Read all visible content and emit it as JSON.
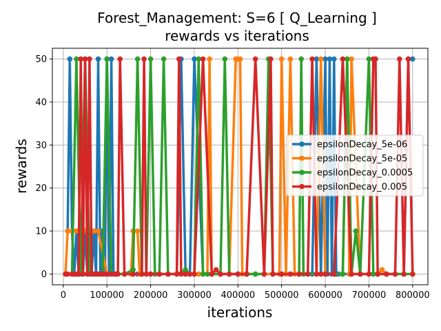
{
  "chart_data": {
    "type": "line",
    "title_line1": "Forest_Management: S=6 [ Q_Learning ]",
    "title_line2": "rewards vs iterations",
    "xlabel": "iterations",
    "ylabel": "rewards",
    "xlim": [
      -25000,
      835000
    ],
    "ylim": [
      -2.5,
      52.5
    ],
    "xticks": [
      0,
      100000,
      200000,
      300000,
      400000,
      500000,
      600000,
      700000,
      800000
    ],
    "xtick_labels": [
      "0",
      "100000",
      "200000",
      "300000",
      "400000",
      "500000",
      "600000",
      "700000",
      "800000"
    ],
    "yticks": [
      0,
      10,
      20,
      30,
      40,
      50
    ],
    "ytick_labels": [
      "0",
      "10",
      "20",
      "30",
      "40",
      "50"
    ],
    "grid": true,
    "legend_position": "center-right",
    "series": [
      {
        "name": "epsilonDecay_5e-06",
        "color": "#1f77b4",
        "x": [
          10000,
          15000,
          20000,
          25000,
          30000,
          35000,
          40000,
          45000,
          50000,
          55000,
          60000,
          65000,
          70000,
          75000,
          80000,
          85000,
          90000,
          95000,
          100000,
          105000,
          110000,
          115000,
          120000,
          140000,
          160000,
          170000,
          180000,
          190000,
          200000,
          220000,
          240000,
          260000,
          270000,
          280000,
          290000,
          300000,
          320000,
          340000,
          360000,
          380000,
          400000,
          420000,
          440000,
          460000,
          480000,
          500000,
          520000,
          540000,
          560000,
          570000,
          580000,
          590000,
          600000,
          605000,
          610000,
          615000,
          620000,
          625000,
          630000,
          640000,
          660000,
          680000,
          700000,
          720000,
          740000,
          760000,
          780000,
          790000,
          800000
        ],
        "values": [
          10,
          50,
          10,
          0,
          10,
          0,
          10,
          0,
          10,
          0,
          10,
          0,
          10,
          0,
          50,
          0,
          10,
          0,
          50,
          0,
          50,
          0,
          0,
          0,
          0,
          0,
          0,
          0,
          0,
          0,
          0,
          0,
          50,
          0,
          0,
          50,
          0,
          0,
          0,
          0,
          0,
          0,
          0,
          0,
          0,
          0,
          0,
          0,
          0,
          0,
          50,
          0,
          50,
          0,
          50,
          0,
          50,
          0,
          0,
          0,
          0,
          0,
          0,
          0,
          0,
          0,
          0,
          50,
          50
        ]
      },
      {
        "name": "epsilonDecay_5e-05",
        "color": "#ff7f0e",
        "x": [
          5000,
          10000,
          20000,
          30000,
          40000,
          50000,
          60000,
          70000,
          80000,
          100000,
          120000,
          140000,
          155000,
          160000,
          170000,
          175000,
          180000,
          200000,
          220000,
          240000,
          260000,
          280000,
          300000,
          310000,
          320000,
          330000,
          335000,
          340000,
          360000,
          380000,
          395000,
          400000,
          405000,
          410000,
          420000,
          440000,
          460000,
          480000,
          495000,
          500000,
          510000,
          520000,
          530000,
          540000,
          560000,
          580000,
          590000,
          600000,
          620000,
          640000,
          650000,
          655000,
          660000,
          680000,
          700000,
          720000,
          730000,
          740000,
          760000,
          780000,
          800000
        ],
        "values": [
          0,
          10,
          10,
          10,
          10,
          10,
          10,
          10,
          10,
          0,
          0,
          0,
          0,
          10,
          10,
          0,
          0,
          0,
          0,
          0,
          0,
          0,
          0,
          0,
          0,
          0,
          50,
          0,
          0,
          0,
          50,
          50,
          50,
          0,
          0,
          0,
          0,
          0,
          0,
          50,
          0,
          50,
          0,
          0,
          0,
          0,
          50,
          0,
          0,
          0,
          50,
          0,
          50,
          0,
          0,
          0,
          1,
          0,
          0,
          0,
          0
        ]
      },
      {
        "name": "epsilonDecay_0.0005",
        "color": "#2ca02c",
        "x": [
          20000,
          30000,
          40000,
          50000,
          60000,
          70000,
          80000,
          90000,
          100000,
          110000,
          120000,
          140000,
          160000,
          170000,
          180000,
          190000,
          200000,
          210000,
          220000,
          230000,
          240000,
          260000,
          280000,
          290000,
          300000,
          310000,
          320000,
          330000,
          340000,
          360000,
          370000,
          380000,
          400000,
          420000,
          440000,
          460000,
          470000,
          480000,
          500000,
          520000,
          540000,
          545000,
          550000,
          560000,
          580000,
          600000,
          620000,
          640000,
          650000,
          660000,
          670000,
          680000,
          700000,
          710000,
          720000,
          740000,
          760000,
          780000,
          800000
        ],
        "values": [
          0,
          50,
          0,
          50,
          0,
          0,
          0,
          0,
          50,
          0,
          0,
          0,
          1,
          50,
          0,
          0,
          50,
          0,
          0,
          50,
          0,
          0,
          1,
          0,
          0,
          50,
          0,
          0,
          0,
          0,
          50,
          0,
          0,
          0,
          0,
          0,
          50,
          0,
          0,
          0,
          0,
          50,
          0,
          0,
          0,
          0,
          0,
          0,
          50,
          0,
          10,
          0,
          50,
          0,
          0,
          0,
          0,
          0,
          0
        ]
      },
      {
        "name": "epsilonDecay_0.005",
        "color": "#d62728",
        "x": [
          5000,
          10000,
          20000,
          25000,
          30000,
          35000,
          40000,
          45000,
          50000,
          55000,
          60000,
          65000,
          70000,
          75000,
          80000,
          85000,
          90000,
          100000,
          110000,
          120000,
          125000,
          130000,
          140000,
          160000,
          180000,
          185000,
          190000,
          200000,
          220000,
          240000,
          260000,
          265000,
          270000,
          280000,
          290000,
          300000,
          320000,
          340000,
          350000,
          360000,
          380000,
          400000,
          420000,
          440000,
          460000,
          475000,
          480000,
          500000,
          520000,
          540000,
          560000,
          570000,
          580000,
          590000,
          600000,
          620000,
          640000,
          660000,
          680000,
          700000,
          710000,
          715000,
          720000,
          740000,
          760000,
          770000,
          780000,
          790000,
          800000
        ],
        "values": [
          0,
          0,
          0,
          0,
          0,
          0,
          50,
          0,
          50,
          0,
          50,
          0,
          0,
          0,
          0,
          0,
          0,
          0,
          0,
          0,
          0,
          50,
          0,
          0,
          0,
          50,
          0,
          0,
          0,
          0,
          0,
          50,
          0,
          0,
          0,
          0,
          50,
          0,
          1,
          0,
          0,
          0,
          0,
          50,
          0,
          50,
          0,
          0,
          0,
          0,
          0,
          50,
          0,
          0,
          0,
          0,
          50,
          0,
          0,
          0,
          50,
          50,
          0,
          0,
          0,
          50,
          0,
          50,
          0
        ]
      }
    ]
  }
}
